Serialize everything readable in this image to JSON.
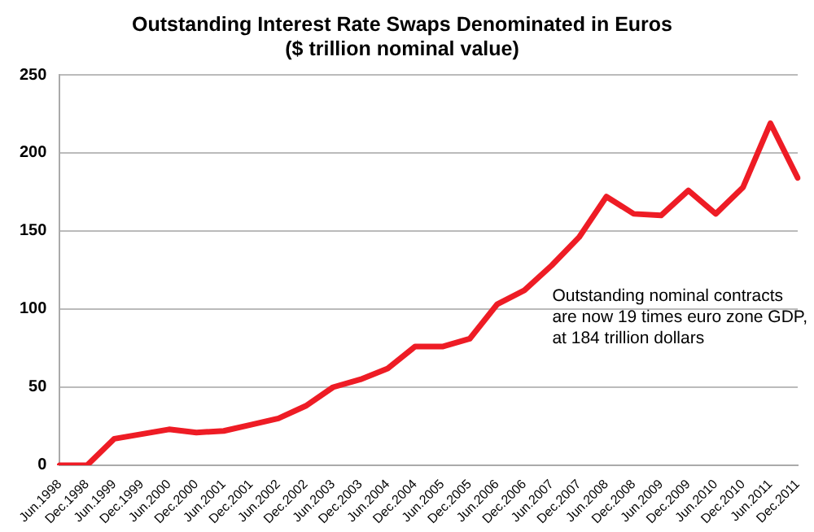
{
  "chart_data": {
    "type": "line",
    "title": "Outstanding Interest Rate Swaps Denominated in Euros\n($ trillion nominal value)",
    "categories": [
      "Jun.1998",
      "Dec.1998",
      "Jun.1999",
      "Dec.1999",
      "Jun.2000",
      "Dec.2000",
      "Jun.2001",
      "Dec.2001",
      "Jun.2002",
      "Dec.2002",
      "Jun.2003",
      "Dec.2003",
      "Jun.2004",
      "Dec.2004",
      "Jun.2005",
      "Dec.2005",
      "Jun.2006",
      "Dec.2006",
      "Jun.2007",
      "Dec.2007",
      "Jun.2008",
      "Dec.2008",
      "Jun.2009",
      "Dec.2009",
      "Jun.2010",
      "Dec.2010",
      "Jun.2011",
      "Dec.2011"
    ],
    "series": [
      {
        "color": "#ee1c25",
        "values": [
          0,
          0,
          17,
          20,
          23,
          21,
          22,
          26,
          30,
          38,
          50,
          55,
          62,
          76,
          76,
          81,
          103,
          112,
          128,
          146,
          172,
          161,
          160,
          176,
          161,
          178,
          219,
          184
        ]
      }
    ],
    "ylim": [
      0,
      250
    ],
    "yticks": [
      0,
      50,
      100,
      150,
      200,
      250
    ],
    "grid": "y",
    "legend": false,
    "marker": "none",
    "line_style": "solid",
    "annotations": [
      "Outstanding nominal contracts\nare now 19 times euro zone GDP,\nat 184 trillion dollars"
    ]
  }
}
